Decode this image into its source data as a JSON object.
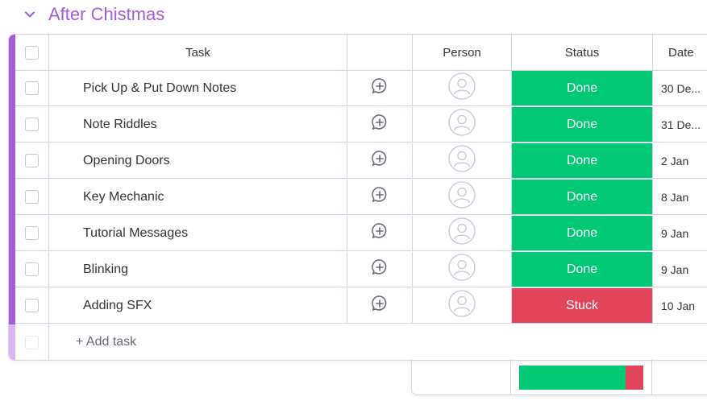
{
  "group": {
    "title": "After Chistmas",
    "color": "#a25ddc"
  },
  "columns": {
    "task": "Task",
    "person": "Person",
    "status": "Status",
    "date": "Date"
  },
  "tasks": [
    {
      "name": "Pick Up & Put Down Notes",
      "status": "Done",
      "date": "30 De..."
    },
    {
      "name": "Note Riddles",
      "status": "Done",
      "date": "31 De..."
    },
    {
      "name": "Opening Doors",
      "status": "Done",
      "date": "2 Jan"
    },
    {
      "name": "Key Mechanic",
      "status": "Done",
      "date": "8 Jan"
    },
    {
      "name": "Tutorial Messages",
      "status": "Done",
      "date": "9 Jan"
    },
    {
      "name": "Blinking",
      "status": "Done",
      "date": "9 Jan"
    },
    {
      "name": "Adding SFX",
      "status": "Stuck",
      "date": "10 Jan"
    }
  ],
  "add_task_label": "+ Add task",
  "status_colors": {
    "Done": "#00c875",
    "Stuck": "#e2445c"
  },
  "status_summary": {
    "Done": 6,
    "Stuck": 1
  },
  "icons": {
    "collapse": "chevron-down-icon",
    "conversation": "add-update-icon",
    "person": "person-avatar-icon"
  }
}
